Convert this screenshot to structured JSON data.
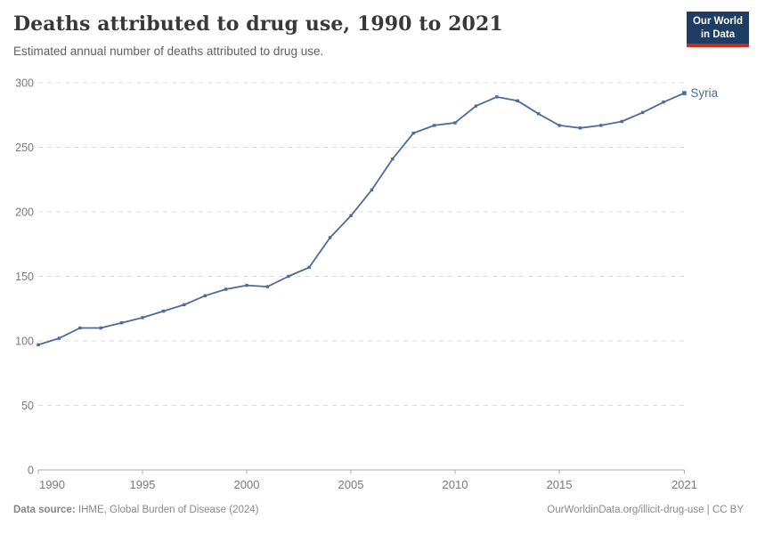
{
  "header": {
    "title": "Deaths attributed to drug use, 1990 to 2021",
    "subtitle": "Estimated annual number of deaths attributed to drug use.",
    "logo_line1": "Our World",
    "logo_line2": "in Data"
  },
  "footer": {
    "datasource_label": "Data source:",
    "datasource_value": "IHME, Global Burden of Disease (2024)",
    "credit": "OurWorldinData.org/illicit-drug-use | CC BY"
  },
  "colors": {
    "line": "#4C6A9C",
    "logo_bg": "#1d3d63",
    "logo_stripe": "#cc2b21",
    "grid": "#dcdcdc",
    "axis": "#a8a8a8",
    "tick_label": "#7a7a7a",
    "title_text": "#383838",
    "subtitle_text": "#5f5f5f",
    "footer_text": "#8a8a8a"
  },
  "chart_data": {
    "type": "line",
    "title": "Deaths attributed to drug use, 1990 to 2021",
    "subtitle": "Estimated annual number of deaths attributed to drug use.",
    "xlabel": "",
    "ylabel": "",
    "xlim": [
      1990,
      2021
    ],
    "ylim": [
      0,
      300
    ],
    "x_ticks": [
      1990,
      1995,
      2000,
      2005,
      2010,
      2015,
      2021
    ],
    "y_ticks": [
      0,
      50,
      100,
      150,
      200,
      250,
      300
    ],
    "grid": "horizontal-dashed",
    "legend_position": "end-of-line-label",
    "end_label": "Syria",
    "series": [
      {
        "name": "Syria",
        "color": "#4C6A9C",
        "x": [
          1990,
          1991,
          1992,
          1993,
          1994,
          1995,
          1996,
          1997,
          1998,
          1999,
          2000,
          2001,
          2002,
          2003,
          2004,
          2005,
          2006,
          2007,
          2008,
          2009,
          2010,
          2011,
          2012,
          2013,
          2014,
          2015,
          2016,
          2017,
          2018,
          2019,
          2020,
          2021
        ],
        "values": [
          97,
          102,
          110,
          110,
          114,
          118,
          123,
          128,
          135,
          140,
          143,
          142,
          150,
          157,
          180,
          197,
          217,
          241,
          261,
          267,
          269,
          282,
          289,
          286,
          276,
          267,
          265,
          267,
          270,
          277,
          285,
          292
        ]
      }
    ]
  }
}
